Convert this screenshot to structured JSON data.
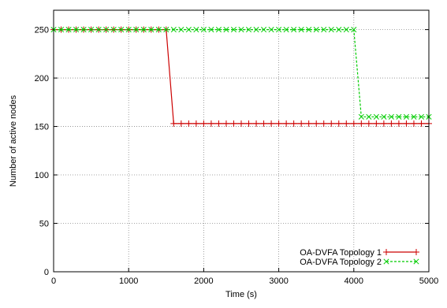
{
  "chart_data": {
    "type": "line",
    "title": "",
    "xlabel": "Time (s)",
    "ylabel": "Number of active nodes",
    "xlim": [
      0,
      5000
    ],
    "ylim": [
      0,
      270
    ],
    "xticks": [
      0,
      1000,
      2000,
      3000,
      4000,
      5000
    ],
    "yticks": [
      0,
      50,
      100,
      150,
      200,
      250
    ],
    "grid": true,
    "legend_position": "bottom-right",
    "series": [
      {
        "name": "OA-DVFA Topology 1",
        "color": "#cc0000",
        "marker": "plus",
        "line": "solid",
        "x": [
          0,
          100,
          200,
          300,
          400,
          500,
          600,
          700,
          800,
          900,
          1000,
          1100,
          1200,
          1300,
          1400,
          1500,
          1600,
          1700,
          1800,
          1900,
          2000,
          2100,
          2200,
          2300,
          2400,
          2500,
          2600,
          2700,
          2800,
          2900,
          3000,
          3100,
          3200,
          3300,
          3400,
          3500,
          3600,
          3700,
          3800,
          3900,
          4000,
          4100,
          4200,
          4300,
          4400,
          4500,
          4600,
          4700,
          4800,
          4900,
          5000
        ],
        "y": [
          250,
          250,
          250,
          250,
          250,
          250,
          250,
          250,
          250,
          250,
          250,
          250,
          250,
          250,
          250,
          250,
          153,
          153,
          153,
          153,
          153,
          153,
          153,
          153,
          153,
          153,
          153,
          153,
          153,
          153,
          153,
          153,
          153,
          153,
          153,
          153,
          153,
          153,
          153,
          153,
          153,
          153,
          153,
          153,
          153,
          153,
          153,
          153,
          153,
          153,
          153
        ]
      },
      {
        "name": "OA-DVFA Topology 2",
        "color": "#00cc00",
        "marker": "cross",
        "line": "dashed",
        "x": [
          0,
          100,
          200,
          300,
          400,
          500,
          600,
          700,
          800,
          900,
          1000,
          1100,
          1200,
          1300,
          1400,
          1500,
          1600,
          1700,
          1800,
          1900,
          2000,
          2100,
          2200,
          2300,
          2400,
          2500,
          2600,
          2700,
          2800,
          2900,
          3000,
          3100,
          3200,
          3300,
          3400,
          3500,
          3600,
          3700,
          3800,
          3900,
          4000,
          4100,
          4200,
          4300,
          4400,
          4500,
          4600,
          4700,
          4800,
          4900,
          5000
        ],
        "y": [
          250,
          250,
          250,
          250,
          250,
          250,
          250,
          250,
          250,
          250,
          250,
          250,
          250,
          250,
          250,
          250,
          250,
          250,
          250,
          250,
          250,
          250,
          250,
          250,
          250,
          250,
          250,
          250,
          250,
          250,
          250,
          250,
          250,
          250,
          250,
          250,
          250,
          250,
          250,
          250,
          250,
          160,
          160,
          160,
          160,
          160,
          160,
          160,
          160,
          160,
          160
        ]
      }
    ]
  }
}
